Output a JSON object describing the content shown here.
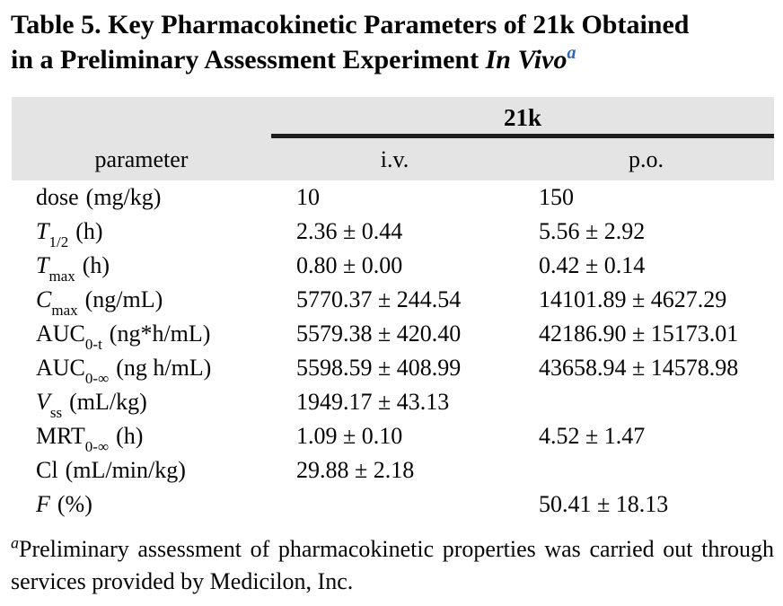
{
  "title": {
    "line1": "Table 5. Key Pharmacokinetic Parameters of 21k Obtained",
    "line2_prefix": "in a Preliminary Assessment Experiment ",
    "line2_italic": "In Vivo",
    "footnote_marker": "a"
  },
  "table": {
    "group_header": "21k",
    "col_headers": {
      "param": "parameter",
      "iv": "i.v.",
      "po": "p.o."
    },
    "rows": [
      {
        "sym_i": "",
        "sym_r": "dose",
        "sub": "",
        "unit": "(mg/kg)",
        "iv": "10",
        "po": "150"
      },
      {
        "sym_i": "T",
        "sym_r": "",
        "sub": "1/2",
        "unit": "(h)",
        "iv": "2.36 ± 0.44",
        "po": "5.56 ± 2.92"
      },
      {
        "sym_i": "T",
        "sym_r": "",
        "sub": "max",
        "unit": "(h)",
        "iv": "0.80 ± 0.00",
        "po": "0.42 ± 0.14"
      },
      {
        "sym_i": "C",
        "sym_r": "",
        "sub": "max",
        "unit": "(ng/mL)",
        "iv": "5770.37 ± 244.54",
        "po": "14101.89 ± 4627.29"
      },
      {
        "sym_i": "",
        "sym_r": "AUC",
        "sub": "0-t",
        "unit": "(ng*h/mL)",
        "iv": "5579.38 ± 420.40",
        "po": "42186.90 ± 15173.01"
      },
      {
        "sym_i": "",
        "sym_r": "AUC",
        "sub": "0-∞",
        "unit": "(ng h/mL)",
        "iv": "5598.59 ± 408.99",
        "po": "43658.94 ± 14578.98"
      },
      {
        "sym_i": "V",
        "sym_r": "",
        "sub": "ss",
        "unit": "(mL/kg)",
        "iv": "1949.17 ± 43.13",
        "po": ""
      },
      {
        "sym_i": "",
        "sym_r": "MRT",
        "sub": "0-∞",
        "unit": "(h)",
        "iv": "1.09 ± 0.10",
        "po": "4.52 ± 1.47"
      },
      {
        "sym_i": "",
        "sym_r": "Cl",
        "sub": "",
        "unit": "(mL/min/kg)",
        "iv": "29.88 ± 2.18",
        "po": ""
      },
      {
        "sym_i": "F",
        "sym_r": "",
        "sub": "",
        "unit": "(%)",
        "iv": "",
        "po": "50.41 ± 18.13"
      }
    ]
  },
  "footnote": {
    "marker": "a",
    "text": "Preliminary assessment of pharmacokinetic properties was carried out through services provided by Medicilon, Inc."
  },
  "colors": {
    "header_bg": "#e5e4e4",
    "rule": "#1d1b1b",
    "superscript_blue": "#3069b0",
    "text": "#050505"
  }
}
